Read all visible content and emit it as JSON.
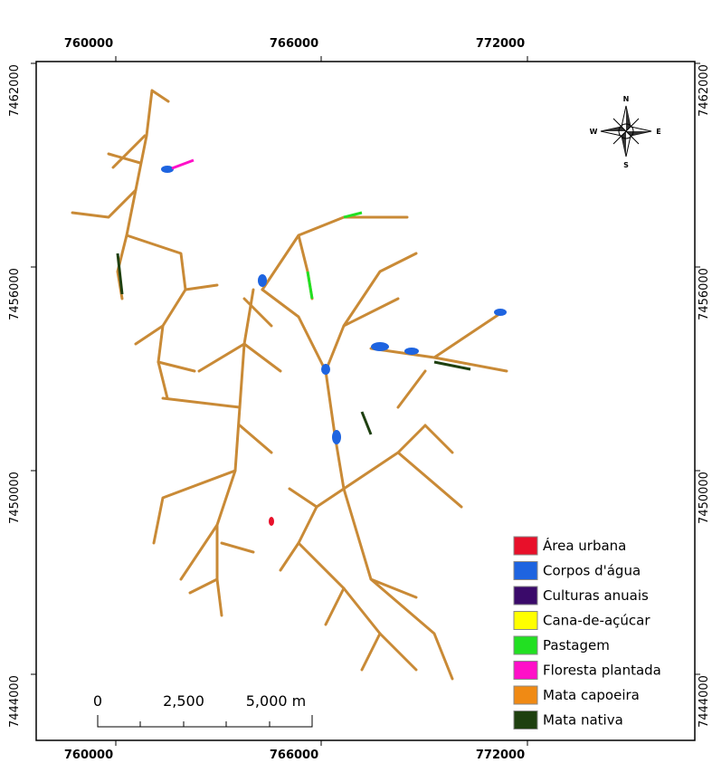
{
  "map": {
    "x_labels": [
      "760000",
      "766000",
      "772000"
    ],
    "y_labels": [
      "7462000",
      "7456000",
      "7450000",
      "7444000"
    ],
    "compass": {
      "n": "N",
      "s": "S",
      "e": "E",
      "w": "W"
    },
    "scale_bar": [
      "0",
      "2,500",
      "5,000 m"
    ],
    "legend": [
      {
        "label": "Área urbana",
        "color": "#e8102a"
      },
      {
        "label": "Corpos d'água",
        "color": "#1e64e0"
      },
      {
        "label": "Culturas anuais",
        "color": "#3a0a6a"
      },
      {
        "label": "Cana-de-açúcar",
        "color": "#ffff00"
      },
      {
        "label": "Pastagem",
        "color": "#22e022"
      },
      {
        "label": "Floresta plantada",
        "color": "#ff10c8"
      },
      {
        "label": "Mata capoeira",
        "color": "#f08a14"
      },
      {
        "label": "Mata nativa",
        "color": "#1e4010"
      }
    ]
  }
}
